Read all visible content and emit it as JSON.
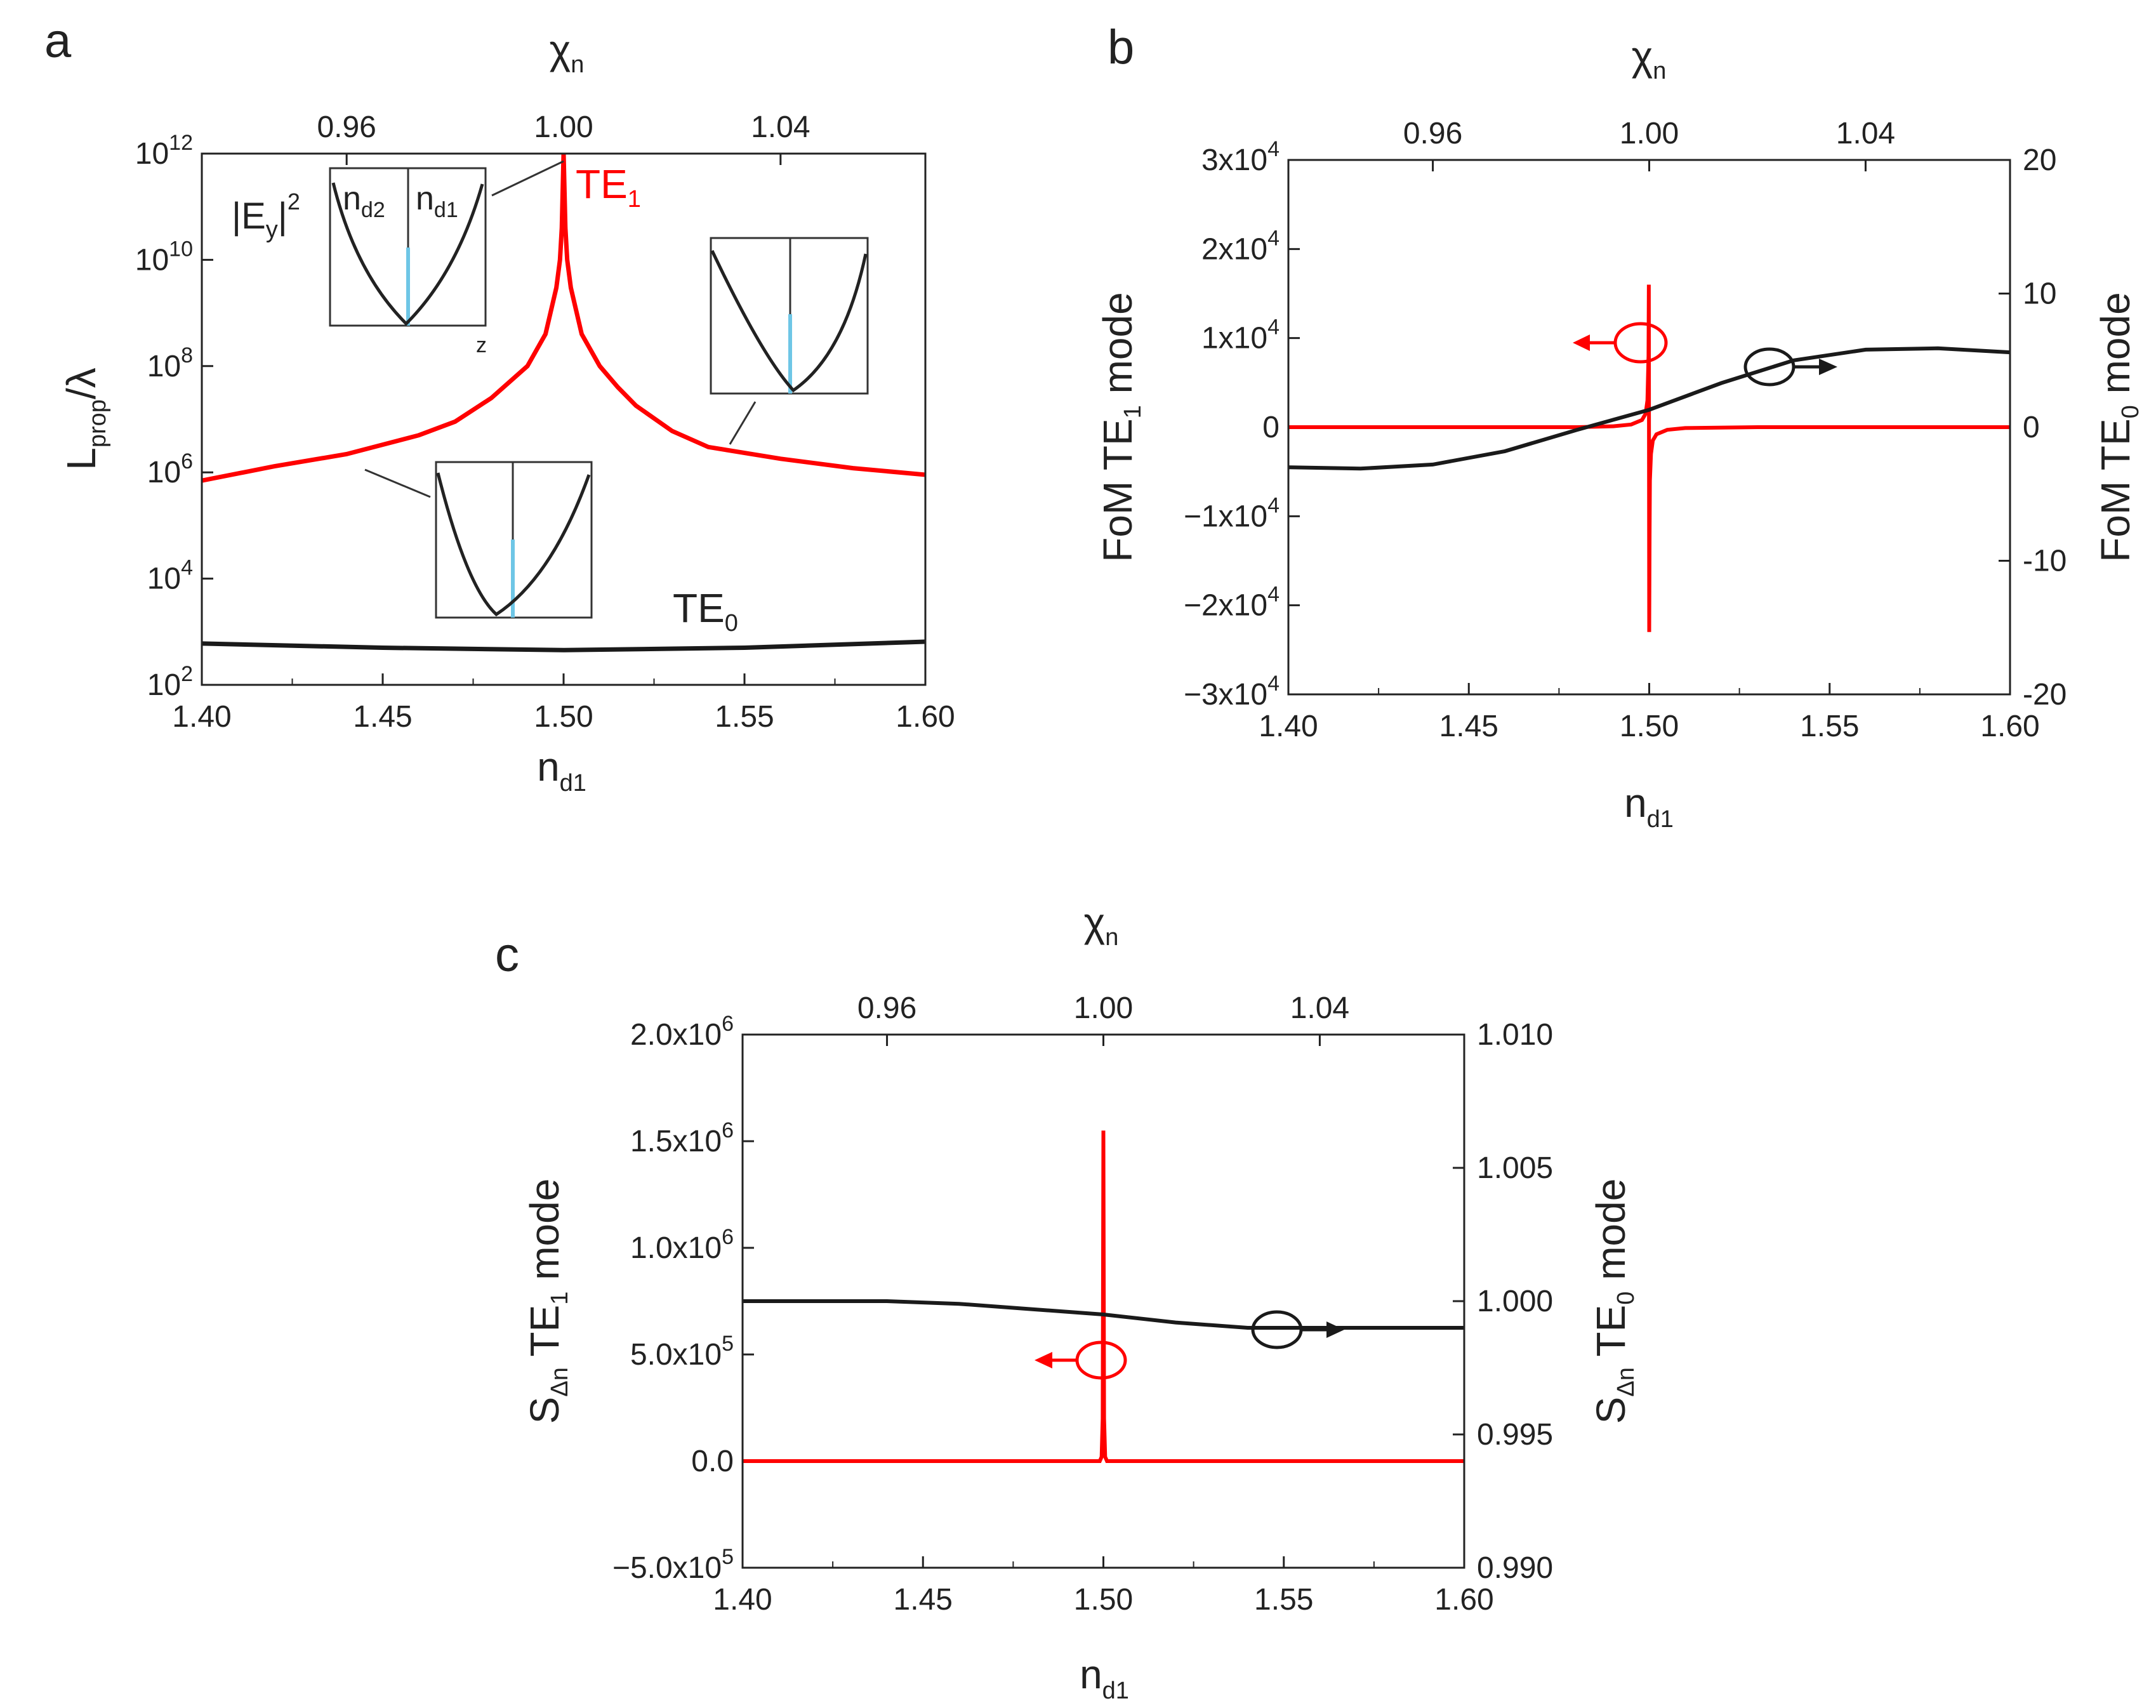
{
  "colors": {
    "red": "#ff0000",
    "black": "#1a1a1a",
    "highlight": "#6ec6e6"
  },
  "chart_data": [
    {
      "panel": "a",
      "type": "line",
      "xlabel": "n",
      "xlabel_sub": "d1",
      "ylabel": "L",
      "ylabel_sub": "prop",
      "ylabel_tail": "/λ",
      "top_xlabel": "χ",
      "top_xlabel_sub": "n",
      "xlim": [
        1.4,
        1.6
      ],
      "x_ticks": [
        "1.40",
        "1.45",
        "1.50",
        "1.55",
        "1.60"
      ],
      "top_xlim": [
        0.9333,
        1.0667
      ],
      "top_ticks": [
        "0.96",
        "1.00",
        "1.04"
      ],
      "yscale": "log",
      "ylim": [
        100,
        1000000000000
      ],
      "y_ticks": [
        {
          "base": "10",
          "exp": "2"
        },
        {
          "base": "10",
          "exp": "4"
        },
        {
          "base": "10",
          "exp": "6"
        },
        {
          "base": "10",
          "exp": "8"
        },
        {
          "base": "10",
          "exp": "10"
        },
        {
          "base": "10",
          "exp": "12"
        }
      ],
      "series": [
        {
          "name": "TE",
          "name_sub": "1",
          "color": "red",
          "x": [
            1.4,
            1.42,
            1.44,
            1.46,
            1.47,
            1.48,
            1.485,
            1.49,
            1.495,
            1.498,
            1.499,
            1.4995,
            1.5,
            1.5005,
            1.501,
            1.502,
            1.505,
            1.51,
            1.515,
            1.52,
            1.53,
            1.54,
            1.56,
            1.58,
            1.6
          ],
          "y": [
            700000,
            1300000,
            2200000,
            5000000,
            9000000,
            25000000,
            50000000,
            100000000,
            400000000,
            3000000000,
            10000000000,
            40000000000,
            1000000000000,
            40000000000,
            10000000000,
            3000000000,
            400000000,
            100000000,
            40000000,
            18000000,
            6000000,
            3000000,
            1800000,
            1200000,
            900000
          ]
        },
        {
          "name": "TE",
          "name_sub": "0",
          "color": "black",
          "x": [
            1.4,
            1.45,
            1.5,
            1.55,
            1.6
          ],
          "y": [
            600,
            500,
            450,
            500,
            650
          ]
        }
      ],
      "insets": [
        {
          "title": "|E",
          "title_sub": "y",
          "title_tail": "|",
          "title_sup": "2",
          "left_layer": "n",
          "left_layer_sub": "d2",
          "right_layer": "n",
          "right_layer_sub": "d1",
          "axis_label": "z"
        },
        {},
        {}
      ]
    },
    {
      "panel": "b",
      "type": "line",
      "xlabel": "n",
      "xlabel_sub": "d1",
      "ylabel_left": "FoM TE",
      "ylabel_left_sub": "1",
      "ylabel_left_tail": " mode",
      "ylabel_right": "FoM TE",
      "ylabel_right_sub": "0",
      "ylabel_right_tail": " mode",
      "top_xlabel": "χ",
      "top_xlabel_sub": "n",
      "xlim": [
        1.4,
        1.6
      ],
      "x_ticks": [
        "1.40",
        "1.45",
        "1.50",
        "1.55",
        "1.60"
      ],
      "top_xlim": [
        0.9333,
        1.0667
      ],
      "top_ticks": [
        "0.96",
        "1.00",
        "1.04"
      ],
      "ylim_left": [
        -30000,
        30000
      ],
      "y_left_ticks": [
        {
          "text": "−3x10",
          "exp": "4"
        },
        {
          "text": "−2x10",
          "exp": "4"
        },
        {
          "text": "−1x10",
          "exp": "4"
        },
        {
          "text": "0",
          "exp": ""
        },
        {
          "text": "1x10",
          "exp": "4"
        },
        {
          "text": "2x10",
          "exp": "4"
        },
        {
          "text": "3x10",
          "exp": "4"
        }
      ],
      "ylim_right": [
        -20,
        20
      ],
      "y_right_ticks": [
        "-20",
        "-10",
        "0",
        "10",
        "20"
      ],
      "series": [
        {
          "name": "FoM TE1",
          "axis": "left",
          "color": "red",
          "x": [
            1.4,
            1.48,
            1.49,
            1.495,
            1.498,
            1.499,
            1.4995,
            1.4998,
            1.4999,
            1.5,
            1.5001,
            1.5002,
            1.5005,
            1.501,
            1.502,
            1.505,
            1.51,
            1.53,
            1.6
          ],
          "y": [
            0,
            0,
            100,
            300,
            800,
            1500,
            3000,
            8000,
            16000,
            -23000,
            -12000,
            -6000,
            -3000,
            -1500,
            -800,
            -300,
            -100,
            0,
            0
          ]
        },
        {
          "name": "FoM TE0",
          "axis": "right",
          "color": "black",
          "x": [
            1.4,
            1.42,
            1.44,
            1.46,
            1.48,
            1.5,
            1.52,
            1.54,
            1.56,
            1.58,
            1.6
          ],
          "y": [
            -3,
            -3.1,
            -2.8,
            -1.8,
            -0.2,
            1.3,
            3.3,
            5.0,
            5.8,
            5.9,
            5.6
          ]
        }
      ]
    },
    {
      "panel": "c",
      "type": "line",
      "xlabel": "n",
      "xlabel_sub": "d1",
      "ylabel_left": "S",
      "ylabel_left_sub": "Δn",
      "ylabel_left_mid": " TE",
      "ylabel_left_sub2": "1",
      "ylabel_left_tail": " mode",
      "ylabel_right": "S",
      "ylabel_right_sub": "Δn",
      "ylabel_right_mid": " TE",
      "ylabel_right_sub2": "0",
      "ylabel_right_tail": " mode",
      "top_xlabel": "χ",
      "top_xlabel_sub": "n",
      "xlim": [
        1.4,
        1.6
      ],
      "x_ticks": [
        "1.40",
        "1.45",
        "1.50",
        "1.55",
        "1.60"
      ],
      "top_xlim": [
        0.9333,
        1.0667
      ],
      "top_ticks": [
        "0.96",
        "1.00",
        "1.04"
      ],
      "ylim_left": [
        -500000,
        2000000
      ],
      "y_left_ticks": [
        {
          "text": "−5.0x10",
          "exp": "5"
        },
        {
          "text": "0.0",
          "exp": ""
        },
        {
          "text": "5.0x10",
          "exp": "5"
        },
        {
          "text": "1.0x10",
          "exp": "6"
        },
        {
          "text": "1.5x10",
          "exp": "6"
        },
        {
          "text": "2.0x10",
          "exp": "6"
        }
      ],
      "ylim_right": [
        0.99,
        1.01
      ],
      "y_right_ticks": [
        "0.990",
        "0.995",
        "1.000",
        "1.005",
        "1.010"
      ],
      "series": [
        {
          "name": "S TE1",
          "axis": "left",
          "color": "red",
          "x": [
            1.4,
            1.499,
            1.4995,
            1.4998,
            1.5,
            1.5002,
            1.5005,
            1.501,
            1.6
          ],
          "y": [
            0,
            0,
            20000,
            200000,
            1550000,
            200000,
            20000,
            0,
            0
          ]
        },
        {
          "name": "S TE0",
          "axis": "right",
          "color": "black",
          "x": [
            1.4,
            1.44,
            1.46,
            1.48,
            1.5,
            1.52,
            1.54,
            1.56,
            1.58,
            1.6
          ],
          "y": [
            1.0,
            1.0,
            0.9999,
            0.9997,
            0.9995,
            0.9992,
            0.999,
            0.999,
            0.999,
            0.999
          ]
        }
      ]
    }
  ],
  "panels": {
    "a": "a",
    "b": "b",
    "c": "c"
  }
}
